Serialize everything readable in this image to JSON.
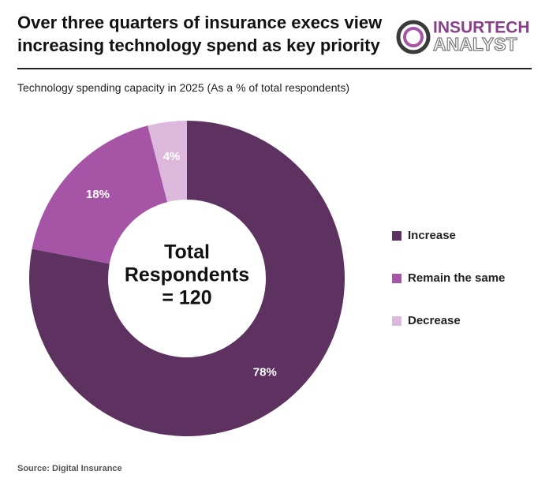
{
  "header": {
    "logo_top": "INSURTECH",
    "logo_bottom": "ANALYST"
  },
  "chart_data": {
    "type": "pie",
    "donut": true,
    "title": "Over three quarters of insurance execs view increasing technology spend as key priority",
    "subtitle": "Technology spending capacity in 2025 (As a % of total respondents)",
    "categories": [
      "Increase",
      "Remain the same",
      "Decrease"
    ],
    "values": [
      78,
      18,
      4
    ],
    "value_labels": [
      "78%",
      "18%",
      "4%"
    ],
    "colors": [
      "#5e3260",
      "#a655a6",
      "#dcb9dc"
    ],
    "center_label": [
      "Total",
      "Respondents",
      "= 120"
    ],
    "legend": "right",
    "source": "Source: Digital Insurance"
  }
}
